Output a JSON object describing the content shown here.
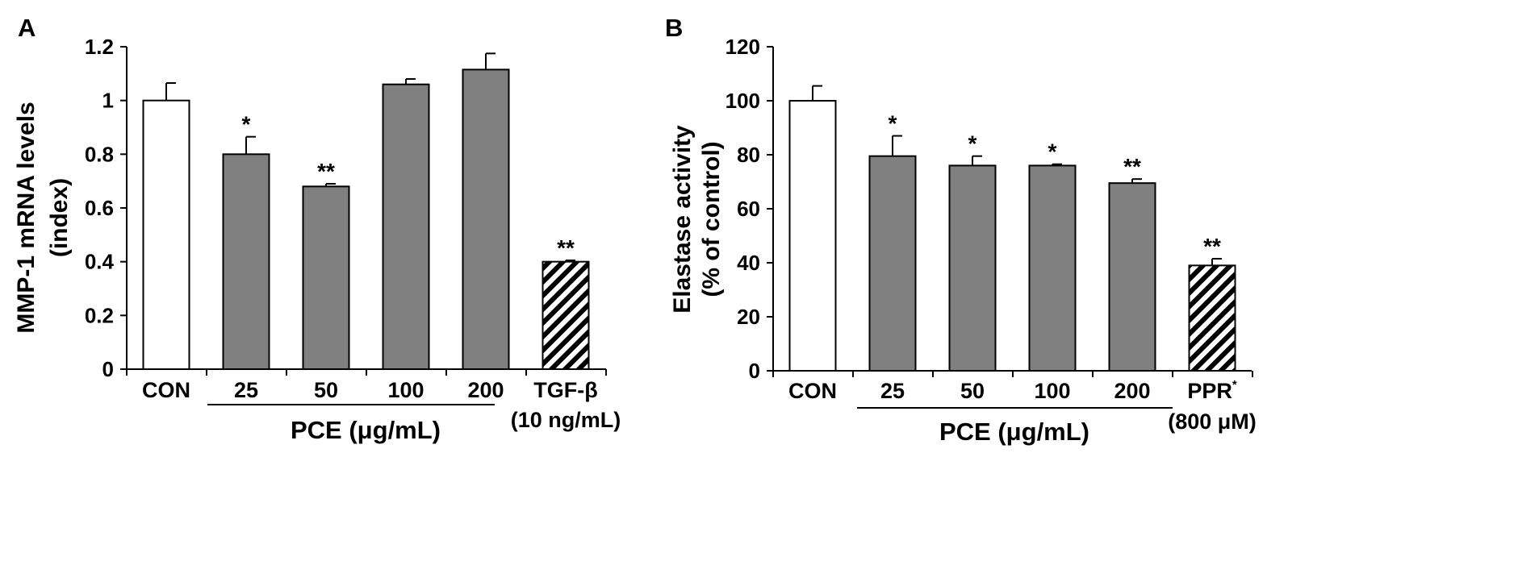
{
  "chart_data": [
    {
      "panel": "A",
      "type": "bar",
      "ylabel_lines": [
        "MMP-1 mRNA levels",
        "(index)"
      ],
      "ylim": [
        0,
        1.2
      ],
      "yticks": [
        "0",
        "0.2",
        "0.4",
        "0.6",
        "0.8",
        "1",
        "1.2"
      ],
      "ytick_values": [
        0,
        0.2,
        0.4,
        0.6,
        0.8,
        1,
        1.2
      ],
      "categories": [
        "CON",
        "25",
        "50",
        "100",
        "200",
        "TGF-β"
      ],
      "category_sublabels": [
        "",
        "",
        "",
        "",
        "",
        "(10 ng/mL)"
      ],
      "values": [
        1.0,
        0.8,
        0.68,
        1.06,
        1.115,
        0.4
      ],
      "errors": [
        0.065,
        0.065,
        0.01,
        0.02,
        0.06,
        0.005
      ],
      "significance": [
        "",
        "*",
        "**",
        "",
        "",
        "**"
      ],
      "fills": [
        "white",
        "gray",
        "gray",
        "gray",
        "gray",
        "hatch"
      ],
      "group_label": "PCE (μg/mL)",
      "group_range": [
        1,
        4
      ]
    },
    {
      "panel": "B",
      "type": "bar",
      "ylabel_lines": [
        "Elastase activity",
        "(% of control)"
      ],
      "ylim": [
        0,
        120
      ],
      "yticks": [
        "0",
        "20",
        "40",
        "60",
        "80",
        "100",
        "120"
      ],
      "ytick_values": [
        0,
        20,
        40,
        60,
        80,
        100,
        120
      ],
      "categories": [
        "CON",
        "25",
        "50",
        "100",
        "200",
        "PPR"
      ],
      "category_sup": [
        "",
        "",
        "",
        "",
        "",
        "*"
      ],
      "category_sublabels": [
        "",
        "",
        "",
        "",
        "",
        "(800 μM)"
      ],
      "values": [
        100,
        79.5,
        76,
        76,
        69.5,
        39
      ],
      "errors": [
        5.5,
        7.5,
        3.5,
        0.5,
        1.5,
        2.5
      ],
      "significance": [
        "",
        "*",
        "*",
        "*",
        "**",
        "**"
      ],
      "fills": [
        "white",
        "gray",
        "gray",
        "gray",
        "gray",
        "hatch"
      ],
      "group_label": "PCE (μg/mL)",
      "group_range": [
        1,
        4
      ]
    }
  ],
  "colors": {
    "bar_gray": "#808080",
    "bar_white": "#ffffff",
    "axis": "#000000"
  }
}
